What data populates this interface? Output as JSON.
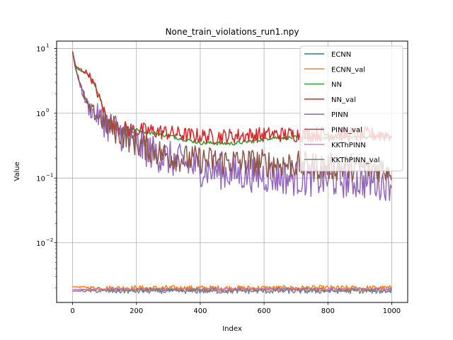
{
  "chart_data": {
    "type": "line",
    "title": "None_train_violations_run1.npy",
    "xlabel": "Index",
    "ylabel": "Value",
    "xlim": [
      -50,
      1050
    ],
    "ylim": [
      0.0012,
      13
    ],
    "yscale": "log",
    "grid": true,
    "legend_position": "top-right",
    "x_ticks": [
      0,
      200,
      400,
      600,
      800,
      1000
    ],
    "x_tick_labels": [
      "0",
      "200",
      "400",
      "600",
      "800",
      "1000"
    ],
    "y_ticks": [
      0.01,
      0.1,
      1,
      10
    ],
    "y_tick_labels": [
      "10",
      "10",
      "10",
      "10"
    ],
    "y_tick_exponents": [
      "−2",
      "−1",
      "0",
      "1"
    ],
    "series": [
      {
        "name": "ECNN",
        "color": "#1f77b4",
        "noise": 0.03,
        "points": [
          [
            0,
            0.0019
          ],
          [
            1000,
            0.0019
          ]
        ]
      },
      {
        "name": "ECNN_val",
        "color": "#ff7f0e",
        "noise": 0.04,
        "points": [
          [
            0,
            0.0021
          ],
          [
            100,
            0.002
          ],
          [
            1000,
            0.002
          ]
        ]
      },
      {
        "name": "NN",
        "color": "#2ca02c",
        "noise": 0.03,
        "points": [
          [
            0,
            9.0
          ],
          [
            10,
            5.0
          ],
          [
            30,
            4.4
          ],
          [
            50,
            4.0
          ],
          [
            70,
            2.6
          ],
          [
            90,
            1.5
          ],
          [
            110,
            0.8
          ],
          [
            130,
            0.6
          ],
          [
            200,
            0.55
          ],
          [
            300,
            0.45
          ],
          [
            400,
            0.35
          ],
          [
            500,
            0.34
          ],
          [
            560,
            0.37
          ],
          [
            620,
            0.42
          ],
          [
            700,
            0.42
          ],
          [
            800,
            0.42
          ],
          [
            900,
            0.43
          ],
          [
            1000,
            0.43
          ]
        ]
      },
      {
        "name": "NN_val",
        "color": "#d62728",
        "noise": 0.12,
        "points": [
          [
            0,
            9.0
          ],
          [
            10,
            5.2
          ],
          [
            30,
            4.6
          ],
          [
            50,
            4.1
          ],
          [
            70,
            2.6
          ],
          [
            90,
            1.4
          ],
          [
            110,
            0.75
          ],
          [
            130,
            0.6
          ],
          [
            200,
            0.55
          ],
          [
            260,
            0.53
          ],
          [
            300,
            0.5
          ],
          [
            360,
            0.46
          ],
          [
            420,
            0.44
          ],
          [
            480,
            0.44
          ],
          [
            560,
            0.46
          ],
          [
            640,
            0.47
          ],
          [
            700,
            0.47
          ],
          [
            800,
            0.48
          ],
          [
            900,
            0.47
          ],
          [
            1000,
            0.47
          ]
        ]
      },
      {
        "name": "PINN",
        "color": "#9467bd",
        "noise": 0.28,
        "points": [
          [
            0,
            8.5
          ],
          [
            10,
            4.8
          ],
          [
            30,
            2.2
          ],
          [
            50,
            1.2
          ],
          [
            80,
            0.9
          ],
          [
            110,
            0.65
          ],
          [
            150,
            0.5
          ],
          [
            200,
            0.33
          ],
          [
            250,
            0.25
          ],
          [
            300,
            0.2
          ],
          [
            350,
            0.17
          ],
          [
            400,
            0.14
          ],
          [
            500,
            0.12
          ],
          [
            600,
            0.11
          ],
          [
            700,
            0.1
          ],
          [
            800,
            0.095
          ],
          [
            900,
            0.09
          ],
          [
            1000,
            0.085
          ]
        ]
      },
      {
        "name": "PINN_val",
        "color": "#8c564b",
        "noise": 0.22,
        "points": [
          [
            0,
            8.5
          ],
          [
            10,
            4.8
          ],
          [
            30,
            2.2
          ],
          [
            50,
            1.2
          ],
          [
            80,
            0.9
          ],
          [
            110,
            0.65
          ],
          [
            150,
            0.5
          ],
          [
            200,
            0.35
          ],
          [
            250,
            0.27
          ],
          [
            300,
            0.22
          ],
          [
            350,
            0.2
          ],
          [
            400,
            0.19
          ],
          [
            500,
            0.18
          ],
          [
            600,
            0.17
          ],
          [
            700,
            0.16
          ],
          [
            800,
            0.15
          ],
          [
            900,
            0.145
          ],
          [
            1000,
            0.14
          ]
        ]
      },
      {
        "name": "KKThPINN",
        "color": "#e377c2",
        "noise": 0.025,
        "points": [
          [
            0,
            0.0019
          ],
          [
            1000,
            0.0019
          ]
        ]
      },
      {
        "name": "KKThPINN_val",
        "color": "#7f7f7f",
        "noise": 0.04,
        "points": [
          [
            0,
            0.0018
          ],
          [
            1000,
            0.0018
          ]
        ]
      }
    ]
  }
}
